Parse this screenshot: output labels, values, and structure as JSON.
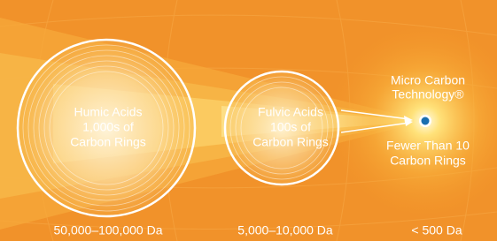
{
  "nodes": [
    {
      "label": [
        "Humic Acids",
        "1,000s of",
        "Carbon Rings"
      ],
      "size": "50,000–100,000 Da"
    },
    {
      "label": [
        "Fulvic Acids",
        "100s of",
        "Carbon Rings"
      ],
      "size": "5,000–10,000 Da"
    },
    {
      "label": [
        "Micro Carbon",
        "Technology®"
      ],
      "caption": [
        "Fewer Than 10",
        "Carbon Rings"
      ],
      "size": "< 500 Da"
    }
  ]
}
